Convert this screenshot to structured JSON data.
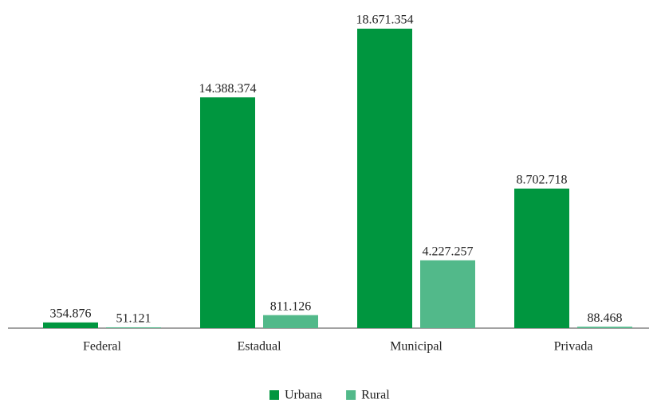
{
  "chart_data": {
    "type": "bar",
    "categories": [
      "Federal",
      "Estadual",
      "Municipal",
      "Privada"
    ],
    "series": [
      {
        "name": "Urbana",
        "color": "#00963f",
        "values": [
          354876,
          14388374,
          18671354,
          8702718
        ],
        "value_labels": [
          "354.876",
          "14.388.374",
          "18.671.354",
          "8.702.718"
        ]
      },
      {
        "name": "Rural",
        "color": "#52b98a",
        "values": [
          51121,
          811126,
          4227257,
          88468
        ],
        "value_labels": [
          "51.121",
          "811.126",
          "4.227.257",
          "88.468"
        ]
      }
    ],
    "legend": "bottom"
  }
}
